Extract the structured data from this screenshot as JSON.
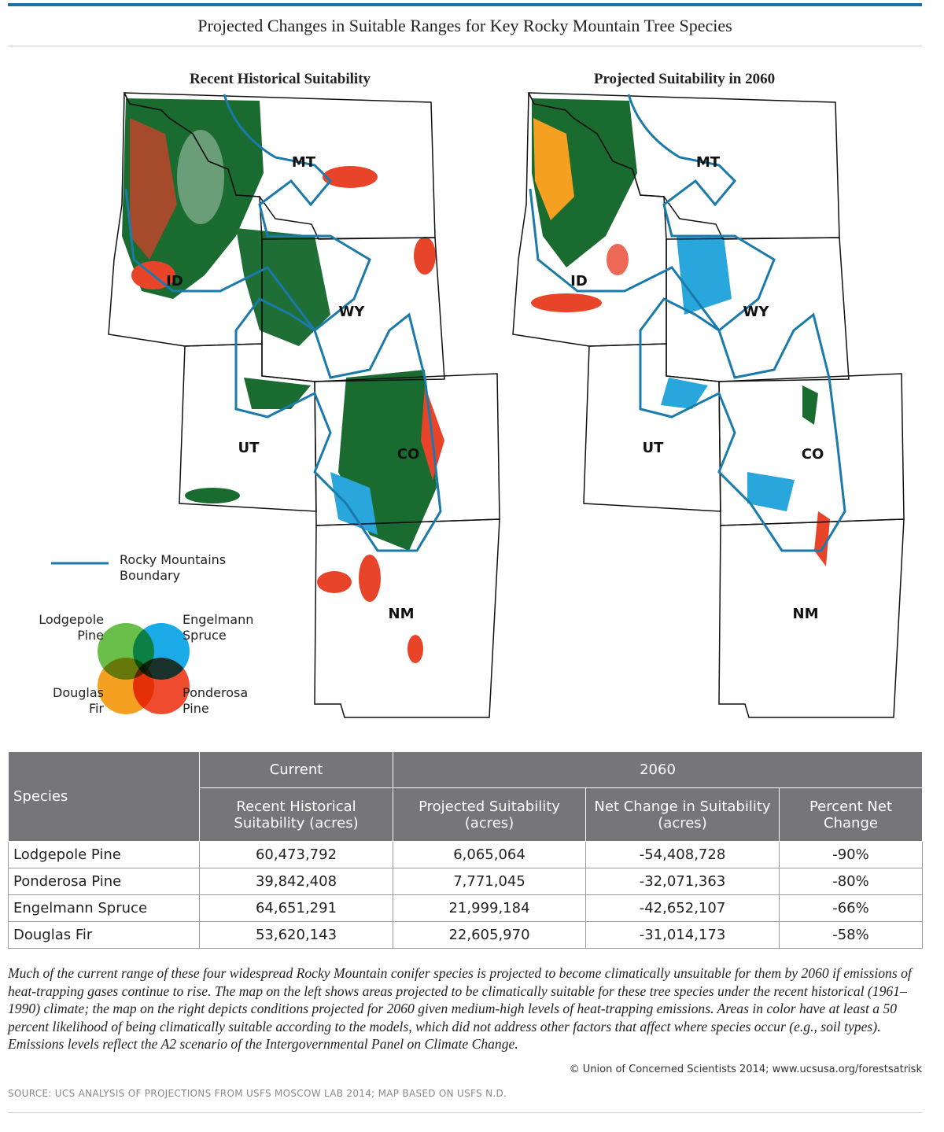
{
  "title": "Projected Changes in Suitable Ranges for Key Rocky Mountain Tree Species",
  "maps": [
    {
      "title": "Recent Historical Suitability",
      "states": [
        "MT",
        "ID",
        "WY",
        "UT",
        "CO",
        "NM"
      ]
    },
    {
      "title": "Projected Suitability in 2060",
      "states": [
        "MT",
        "ID",
        "WY",
        "UT",
        "CO",
        "NM"
      ]
    }
  ],
  "legend": {
    "boundary": "Rocky Mountains Boundary",
    "species": [
      "Lodgepole Pine",
      "Engelmann Spruce",
      "Douglas Fir",
      "Ponderosa Pine"
    ]
  },
  "table": {
    "header": {
      "species": "Species",
      "current": "Current",
      "future": "2060",
      "columns": [
        "Recent Historical Suitability (acres)",
        "Projected Suitability (acres)",
        "Net Change in Suitability (acres)",
        "Percent Net Change"
      ]
    },
    "rows": [
      [
        "Lodgepole Pine",
        "60,473,792",
        "6,065,064",
        "-54,408,728",
        "-90%"
      ],
      [
        "Ponderosa Pine",
        "39,842,408",
        "7,771,045",
        "-32,071,363",
        "-80%"
      ],
      [
        "Engelmann Spruce",
        "64,651,291",
        "21,999,184",
        "-42,652,107",
        "-66%"
      ],
      [
        "Douglas Fir",
        "53,620,143",
        "22,605,970",
        "-31,014,173",
        "-58%"
      ]
    ]
  },
  "caption": "Much of the current range of these four widespread Rocky Mountain conifer species is projected to become climatically unsuitable for them by 2060 if emissions of heat-trapping gases continue to rise. The map on the left shows areas projected to be climatically suitable for these tree species under the recent historical (1961–1990) climate; the map on the right depicts conditions projected for 2060 given medium-high levels of heat-trapping emissions. Areas in color have at least a 50 percent likelihood of being climatically suitable according to the models, which did not address other factors that affect where species occur (e.g., soil types). Emissions levels reflect the A2 scenario of the Intergovernmental Panel on Climate Change.",
  "credit": "© Union of Concerned Scientists 2014; www.ucsusa.org/forestsatrisk",
  "source": "SOURCE: UCS ANALYSIS OF PROJECTIONS FROM USFS MOSCOW LAB 2014; MAP BASED ON USFS N.D."
}
